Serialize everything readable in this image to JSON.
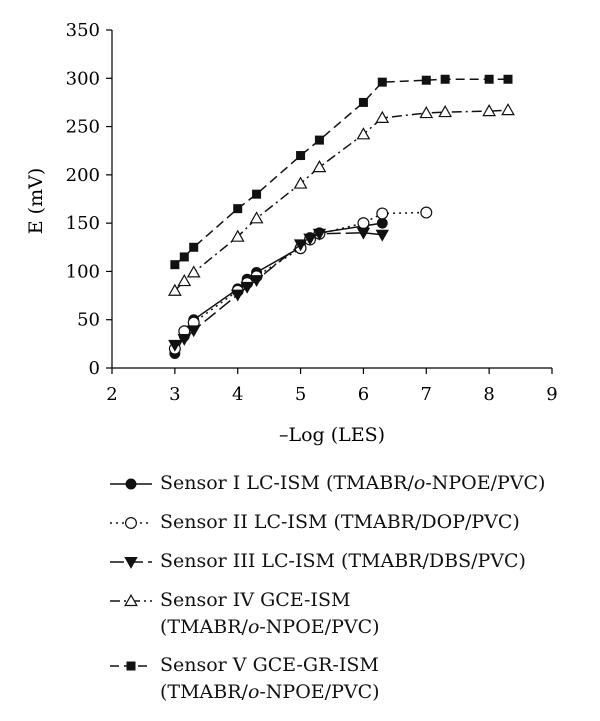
{
  "chart_data": {
    "type": "line",
    "title": "",
    "xlabel": "–Log (LES)",
    "ylabel": "E (mV)",
    "xlim": [
      2,
      9
    ],
    "ylim": [
      0,
      350
    ],
    "xticks": [
      2,
      3,
      4,
      5,
      6,
      7,
      8,
      9
    ],
    "yticks": [
      0,
      50,
      100,
      150,
      200,
      250,
      300,
      350
    ],
    "grid": false,
    "legend_placement": "below",
    "series": [
      {
        "name": "Sensor I LC-ISM (TMABR/o-NPOE/PVC)",
        "marker": "filled-circle",
        "line": "solid",
        "x": [
          3.0,
          3.15,
          3.3,
          4.0,
          4.15,
          4.3,
          5.0,
          5.15,
          5.3,
          6.0,
          6.3
        ],
        "y": [
          15,
          33,
          50,
          82,
          92,
          99,
          125,
          135,
          140,
          147,
          150
        ]
      },
      {
        "name": "Sensor II LC-ISM (TMABR/DOP/PVC)",
        "marker": "open-circle",
        "line": "dotted",
        "x": [
          3.0,
          3.15,
          3.3,
          4.0,
          4.15,
          4.3,
          5.0,
          5.15,
          5.3,
          6.0,
          6.3,
          7.0
        ],
        "y": [
          20,
          38,
          47,
          80,
          88,
          95,
          124,
          133,
          139,
          150,
          160,
          161
        ]
      },
      {
        "name": "Sensor III LC-ISM (TMABR/DBS/PVC)",
        "marker": "filled-down-triangle",
        "line": "long-dash",
        "x": [
          3.0,
          3.15,
          3.3,
          4.0,
          4.15,
          4.3,
          5.0,
          5.15,
          5.3,
          6.0,
          6.3
        ],
        "y": [
          24,
          30,
          39,
          76,
          84,
          91,
          128,
          134,
          139,
          140,
          138
        ]
      },
      {
        "name": "Sensor IV GCE-ISM (TMABR/o-NPOE/PVC)",
        "marker": "open-triangle",
        "line": "dash-dot",
        "x": [
          3.0,
          3.15,
          3.3,
          4.0,
          4.3,
          5.0,
          5.3,
          6.0,
          6.3,
          7.0,
          7.3,
          8.0,
          8.3
        ],
        "y": [
          80,
          90,
          99,
          136,
          155,
          191,
          208,
          242,
          259,
          264,
          265,
          266,
          267
        ]
      },
      {
        "name": "Sensor V GCE-GR-ISM (TMABR/o-NPOE/PVC)",
        "marker": "filled-square",
        "line": "dashed",
        "x": [
          3.0,
          3.15,
          3.3,
          4.0,
          4.3,
          5.0,
          5.3,
          6.0,
          6.3,
          7.0,
          7.3,
          8.0,
          8.3
        ],
        "y": [
          107,
          115,
          125,
          165,
          180,
          220,
          236,
          275,
          296,
          298,
          299,
          299,
          299
        ]
      }
    ]
  },
  "legend": [
    {
      "pre": "Sensor I LC-ISM (TMABR/",
      "italic": "o",
      "post": "-NPOE/PVC)"
    },
    {
      "pre": "Sensor II LC-ISM (TMABR/DOP/PVC)",
      "italic": "",
      "post": ""
    },
    {
      "pre": "Sensor III LC-ISM (TMABR/DBS/PVC)",
      "italic": "",
      "post": ""
    },
    {
      "pre": "Sensor IV GCE-ISM\n(TMABR/",
      "italic": "o",
      "post": "-NPOE/PVC)"
    },
    {
      "pre": "Sensor V GCE-GR-ISM\n(TMABR/",
      "italic": "o",
      "post": "-NPOE/PVC)"
    }
  ]
}
